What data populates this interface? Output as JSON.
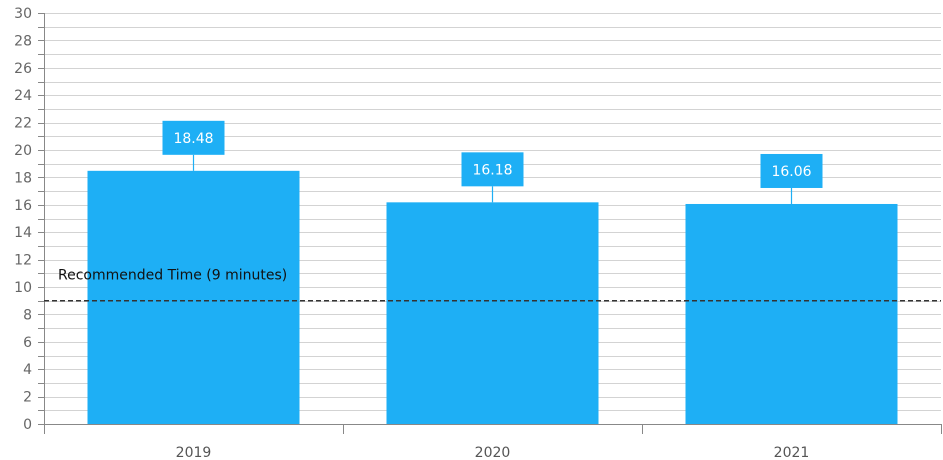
{
  "chart_data": {
    "type": "bar",
    "categories": [
      "2019",
      "2020",
      "2021"
    ],
    "values": [
      18.48,
      16.18,
      16.06
    ],
    "data_labels": [
      "18.48",
      "16.18",
      "16.06"
    ],
    "ylim": [
      0,
      30
    ],
    "y_major_ticks": [
      0,
      2,
      4,
      6,
      8,
      10,
      12,
      14,
      16,
      18,
      20,
      22,
      24,
      26,
      28,
      30
    ],
    "y_tick_labels": [
      "0",
      "2",
      "4",
      "6",
      "8",
      "10",
      "12",
      "14",
      "16",
      "18",
      "20",
      "22",
      "24",
      "26",
      "28",
      "30"
    ],
    "y_minor_step": 1,
    "grid": true,
    "reference_line": {
      "value": 9,
      "label": "Recommended Time (9 minutes)",
      "style": "dashed"
    },
    "colors": {
      "bar": "#1EAFF5",
      "grid": "#d3d3d3",
      "axis": "#888888",
      "reference": "#333333"
    }
  }
}
